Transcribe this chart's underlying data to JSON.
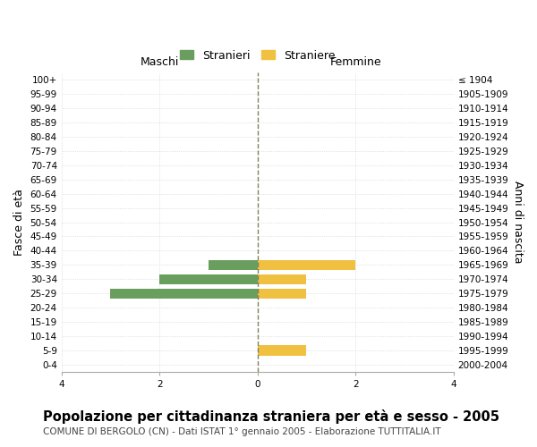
{
  "age_groups": [
    "0-4",
    "5-9",
    "10-14",
    "15-19",
    "20-24",
    "25-29",
    "30-34",
    "35-39",
    "40-44",
    "45-49",
    "50-54",
    "55-59",
    "60-64",
    "65-69",
    "70-74",
    "75-79",
    "80-84",
    "85-89",
    "90-94",
    "95-99",
    "100+"
  ],
  "birth_years": [
    "2000-2004",
    "1995-1999",
    "1990-1994",
    "1985-1989",
    "1980-1984",
    "1975-1979",
    "1970-1974",
    "1965-1969",
    "1960-1964",
    "1955-1959",
    "1950-1954",
    "1945-1949",
    "1940-1944",
    "1935-1939",
    "1930-1934",
    "1925-1929",
    "1920-1924",
    "1915-1919",
    "1910-1914",
    "1905-1909",
    "≤ 1904"
  ],
  "males": [
    0,
    0,
    0,
    0,
    0,
    -3,
    -2,
    -1,
    0,
    0,
    0,
    0,
    0,
    0,
    0,
    0,
    0,
    0,
    0,
    0,
    0
  ],
  "females": [
    0,
    1,
    0,
    0,
    0,
    1,
    1,
    2,
    0,
    0,
    0,
    0,
    0,
    0,
    0,
    0,
    0,
    0,
    0,
    0,
    0
  ],
  "male_color": "#6a9e5e",
  "female_color": "#f0c040",
  "grid_color": "#cccccc",
  "center_line_color": "#808060",
  "xlim": 4,
  "xlabel_left": "Maschi",
  "xlabel_right": "Femmine",
  "ylabel_left": "Fasce di età",
  "ylabel_right": "Anni di nascita",
  "title": "Popolazione per cittadinanza straniera per età e sesso - 2005",
  "subtitle": "COMUNE DI BERGOLO (CN) - Dati ISTAT 1° gennaio 2005 - Elaborazione TUTTITALIA.IT",
  "legend_stranieri": "Stranieri",
  "legend_straniere": "Straniere",
  "tick_fontsize": 7.5,
  "label_fontsize": 9,
  "title_fontsize": 10.5,
  "subtitle_fontsize": 7.5
}
